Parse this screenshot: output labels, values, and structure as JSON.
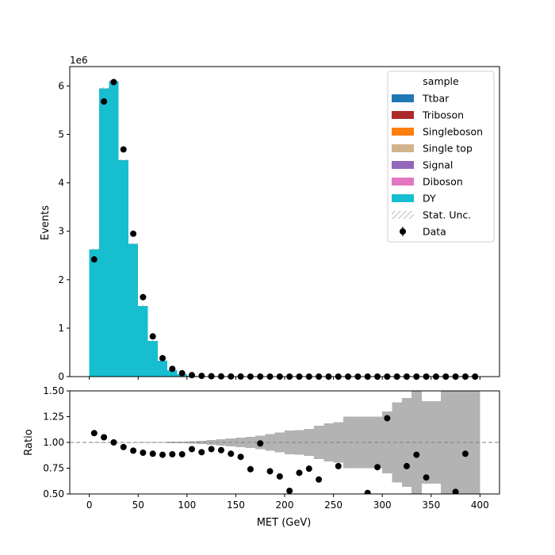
{
  "chart_data": [
    {
      "type": "bar",
      "panel": "main",
      "stacked": true,
      "ylabel": "Events",
      "y_scale_label": "1e6",
      "ylim": [
        0,
        6400000
      ],
      "yticks": [
        0,
        1000000,
        2000000,
        3000000,
        4000000,
        5000000,
        6000000
      ],
      "ytick_labels": [
        "0",
        "1",
        "2",
        "3",
        "4",
        "5",
        "6"
      ],
      "xlim": [
        -20,
        420
      ],
      "bin_edges": [
        0,
        10,
        20,
        30,
        40,
        50,
        60,
        70,
        80,
        90,
        100,
        110,
        120,
        130,
        140,
        150,
        160,
        170,
        180,
        190,
        200,
        210,
        220,
        230,
        240,
        250,
        260,
        270,
        280,
        290,
        300,
        310,
        320,
        330,
        340,
        350,
        360,
        370,
        380,
        390,
        400
      ],
      "series": [
        {
          "name": "Ttbar",
          "color": "#1f77b4",
          "values": [
            0,
            0,
            0,
            0,
            0,
            0,
            0,
            0,
            0,
            0,
            0,
            0,
            0,
            0,
            0,
            0,
            0,
            0,
            0,
            0,
            0,
            0,
            0,
            0,
            0,
            0,
            0,
            0,
            0,
            0,
            0,
            0,
            0,
            0,
            0,
            0,
            0,
            0,
            0,
            0
          ]
        },
        {
          "name": "Triboson",
          "color": "#ad2a2a",
          "values": [
            0,
            0,
            0,
            0,
            0,
            0,
            0,
            0,
            0,
            0,
            0,
            0,
            0,
            0,
            0,
            0,
            0,
            0,
            0,
            0,
            0,
            0,
            0,
            0,
            0,
            0,
            0,
            0,
            0,
            0,
            0,
            0,
            0,
            0,
            0,
            0,
            0,
            0,
            0,
            0
          ]
        },
        {
          "name": "Singleboson",
          "color": "#ff7f0e",
          "values": [
            0,
            0,
            0,
            0,
            0,
            0,
            0,
            0,
            0,
            0,
            0,
            0,
            0,
            0,
            0,
            0,
            0,
            0,
            0,
            0,
            0,
            0,
            0,
            0,
            0,
            0,
            0,
            0,
            0,
            0,
            0,
            0,
            0,
            0,
            0,
            0,
            0,
            0,
            0,
            0
          ]
        },
        {
          "name": "Single top",
          "color": "#d2b48c",
          "values": [
            0,
            0,
            0,
            0,
            0,
            0,
            0,
            0,
            0,
            0,
            0,
            0,
            0,
            0,
            0,
            0,
            0,
            0,
            0,
            0,
            0,
            0,
            0,
            0,
            0,
            0,
            0,
            0,
            0,
            0,
            0,
            0,
            0,
            0,
            0,
            0,
            0,
            0,
            0,
            0
          ]
        },
        {
          "name": "Signal",
          "color": "#9467bd",
          "values": [
            0,
            0,
            0,
            0,
            0,
            0,
            0,
            0,
            0,
            0,
            0,
            0,
            0,
            0,
            0,
            0,
            0,
            0,
            0,
            0,
            0,
            0,
            0,
            0,
            0,
            0,
            0,
            0,
            0,
            0,
            0,
            0,
            0,
            0,
            0,
            0,
            0,
            0,
            0,
            0
          ]
        },
        {
          "name": "Diboson",
          "color": "#e377c2",
          "values": [
            0,
            0,
            0,
            0,
            0,
            0,
            0,
            0,
            0,
            0,
            0,
            0,
            0,
            0,
            0,
            0,
            0,
            0,
            0,
            0,
            0,
            0,
            0,
            0,
            0,
            0,
            0,
            0,
            0,
            0,
            0,
            0,
            0,
            0,
            0,
            0,
            0,
            0,
            0,
            0
          ]
        },
        {
          "name": "DY",
          "color": "#17becf",
          "values": [
            2630000,
            5950000,
            6100000,
            4470000,
            2740000,
            1460000,
            740000,
            330000,
            130000,
            50000,
            20000,
            10000,
            5000,
            3000,
            2000,
            1000,
            800,
            500,
            300,
            200,
            150,
            100,
            80,
            60,
            50,
            40,
            30,
            20,
            15,
            12,
            10,
            8,
            6,
            5,
            4,
            3,
            3,
            2,
            2,
            1
          ]
        }
      ],
      "data": {
        "name": "Data",
        "x": [
          5,
          15,
          25,
          35,
          45,
          55,
          65,
          75,
          85,
          95,
          105,
          115,
          125,
          135,
          145,
          155,
          165,
          175,
          185,
          195,
          205,
          215,
          225,
          235,
          245,
          255,
          265,
          275,
          285,
          295,
          305,
          315,
          325,
          335,
          345,
          355,
          365,
          375,
          385,
          395
        ],
        "values": [
          2420000,
          5680000,
          6080000,
          4690000,
          2950000,
          1640000,
          830000,
          380000,
          160000,
          70000,
          30000,
          15000,
          8000,
          5000,
          3000,
          1500,
          1000,
          700,
          500,
          300,
          200,
          150,
          100,
          80,
          60,
          50,
          40,
          30,
          20,
          15,
          10,
          8,
          6,
          5,
          4,
          3,
          3,
          2,
          2,
          1
        ]
      },
      "legend": {
        "title": "sample",
        "position": "top-right",
        "entries": [
          "Ttbar",
          "Triboson",
          "Singleboson",
          "Single top",
          "Signal",
          "Diboson",
          "DY",
          "Stat. Unc.",
          "Data"
        ]
      }
    },
    {
      "type": "scatter",
      "panel": "ratio",
      "xlabel": "MET (GeV)",
      "ylabel": "Ratio",
      "ylim": [
        0.5,
        1.5
      ],
      "yticks": [
        0.5,
        0.75,
        1.0,
        1.25,
        1.5
      ],
      "ytick_labels": [
        "0.50",
        "0.75",
        "1.00",
        "1.25",
        "1.50"
      ],
      "xticks": [
        0,
        50,
        100,
        150,
        200,
        250,
        300,
        350,
        400
      ],
      "xtick_labels": [
        "0",
        "50",
        "100",
        "150",
        "200",
        "250",
        "300",
        "350",
        "400"
      ],
      "reference_line": 1.0,
      "x": [
        5,
        15,
        25,
        35,
        45,
        55,
        65,
        75,
        85,
        95,
        105,
        115,
        125,
        135,
        145,
        155,
        165,
        175,
        185,
        195,
        205,
        215,
        225,
        235,
        245,
        255,
        265,
        275,
        285,
        295,
        305,
        315,
        325,
        335,
        345,
        355,
        365,
        375,
        385,
        395
      ],
      "values": [
        1.09,
        1.05,
        1.0,
        0.955,
        0.92,
        0.9,
        0.89,
        0.88,
        0.885,
        0.885,
        0.935,
        0.905,
        0.935,
        0.925,
        0.89,
        0.86,
        0.74,
        0.99,
        0.72,
        0.67,
        0.53,
        0.705,
        0.745,
        0.64,
        null,
        0.77,
        null,
        null,
        0.51,
        0.76,
        1.235,
        null,
        0.77,
        0.88,
        0.66,
        null,
        null,
        0.52,
        0.89,
        null
      ],
      "unc_band": [
        0.001,
        0.001,
        0.001,
        0.001,
        0.001,
        0.002,
        0.003,
        0.004,
        0.006,
        0.009,
        0.012,
        0.017,
        0.022,
        0.03,
        0.038,
        0.045,
        0.055,
        0.065,
        0.08,
        0.095,
        0.115,
        0.12,
        0.13,
        0.16,
        0.185,
        0.195,
        0.25,
        0.25,
        0.25,
        0.25,
        0.3,
        0.39,
        0.43,
        0.5,
        0.4,
        0.4,
        0.6,
        0.6,
        0.5,
        0.5
      ]
    }
  ]
}
